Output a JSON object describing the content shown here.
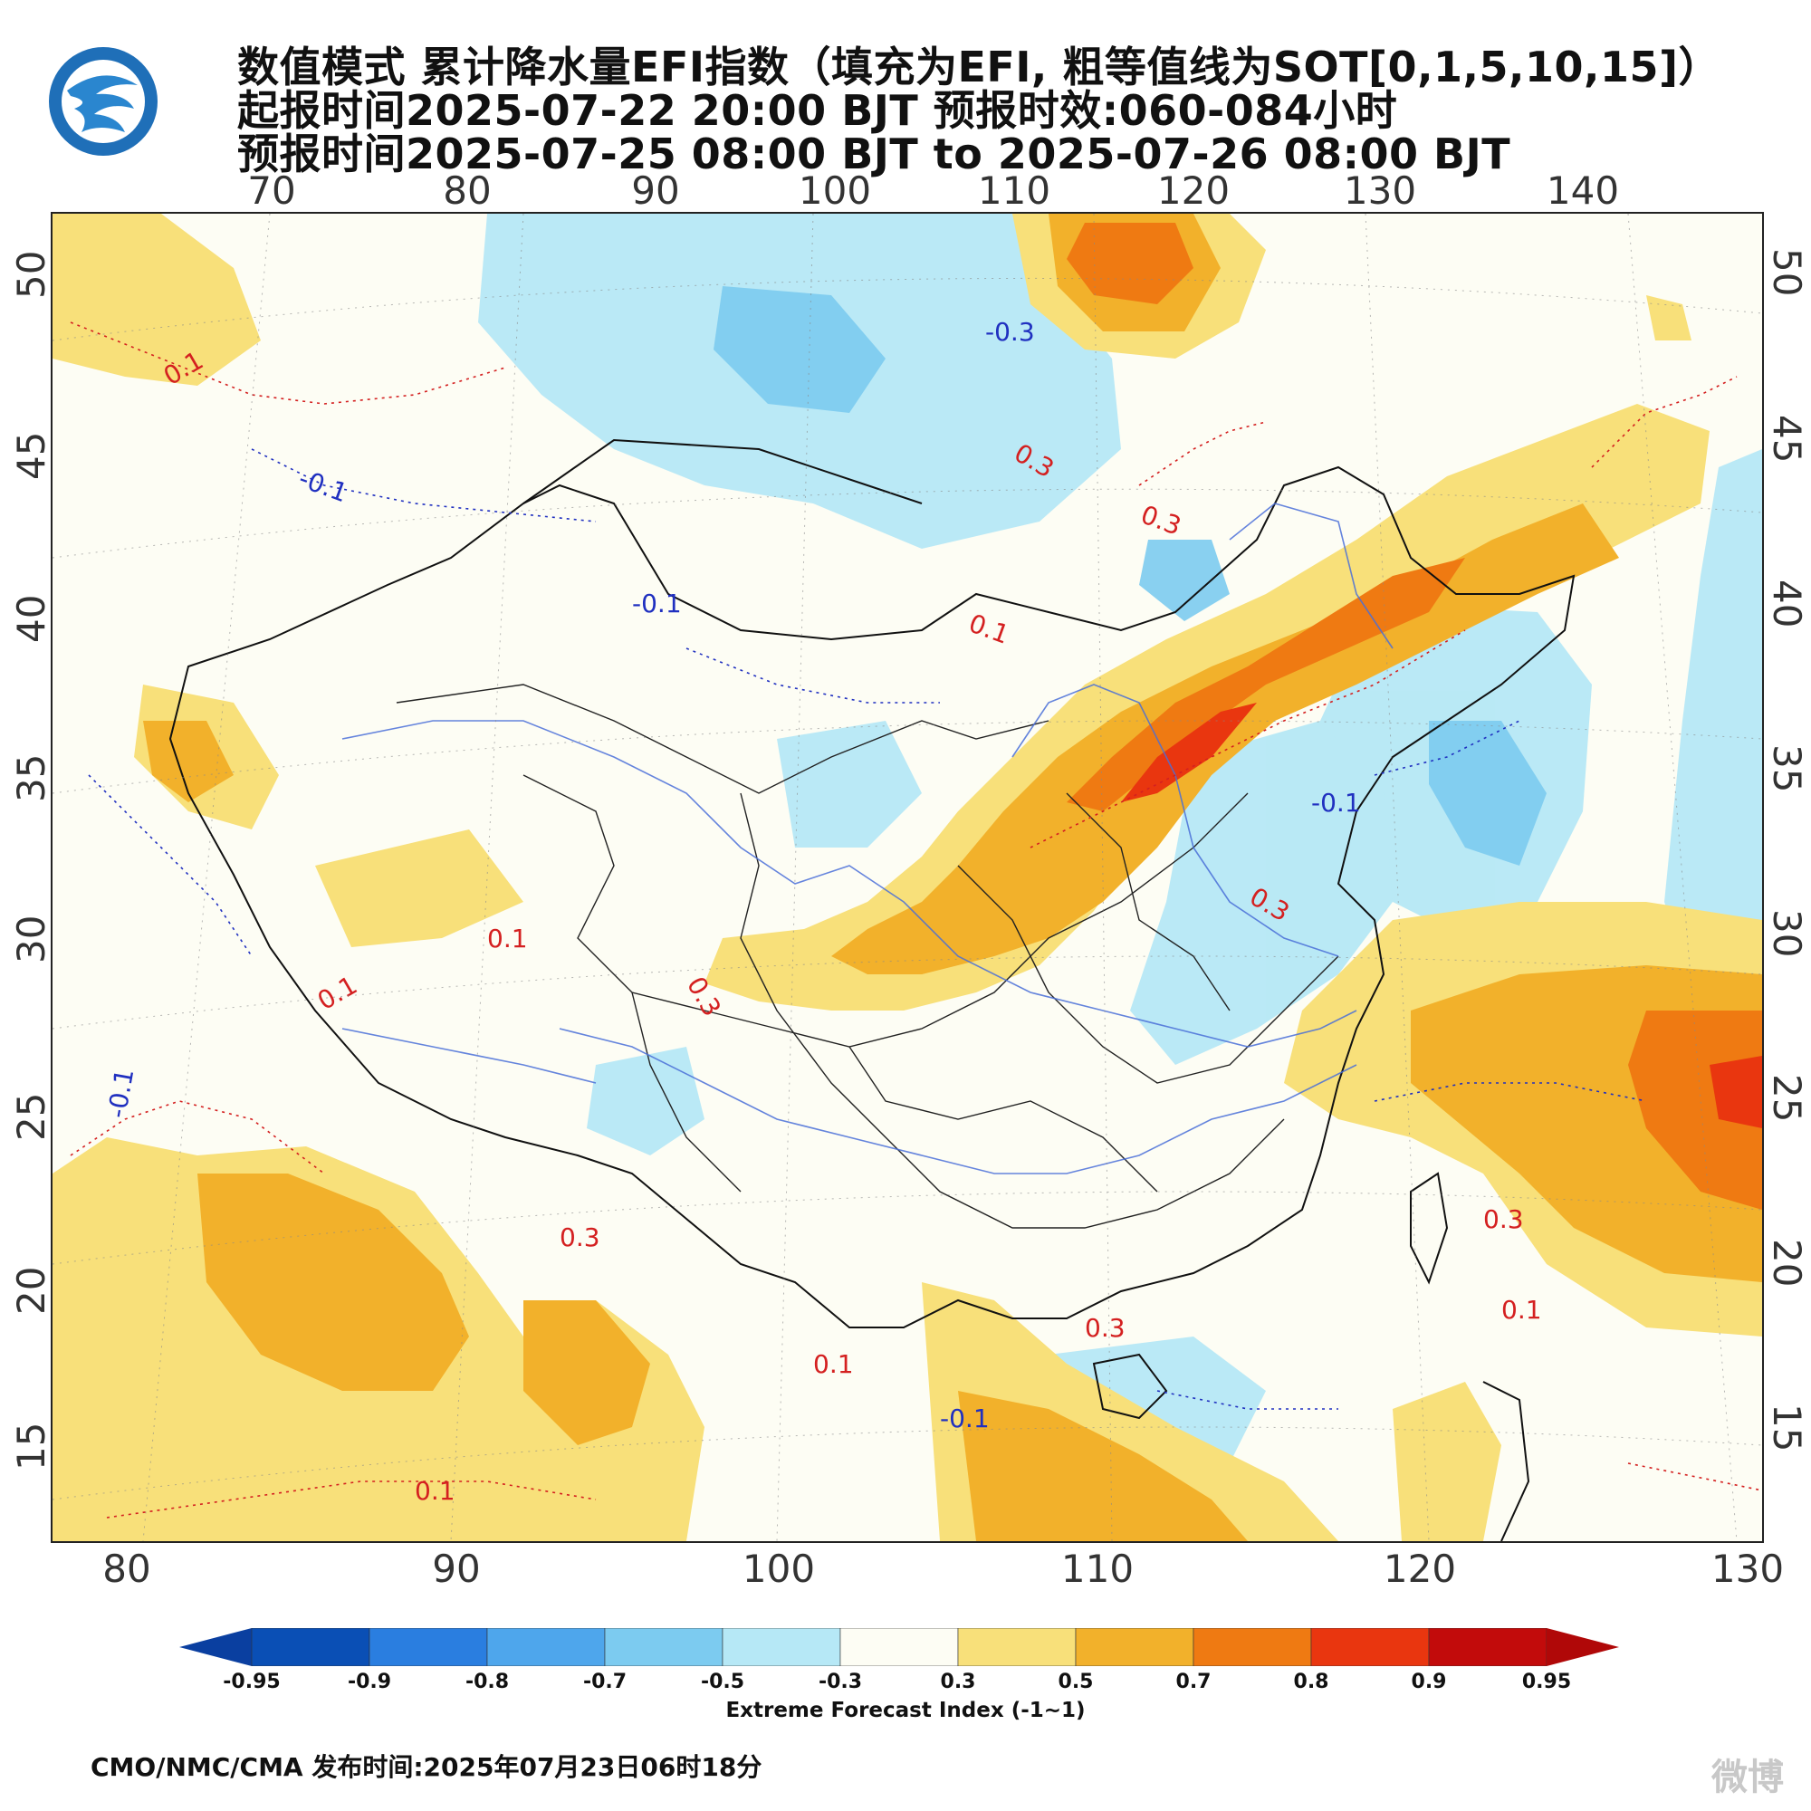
{
  "header": {
    "title_line1": "数值模式 累计降水量EFI指数（填充为EFI, 粗等值线为SOT[0,1,5,10,15]）",
    "title_line2": "起报时间2025-07-22 20:00 BJT 预报时效:060-084小时",
    "title_line3": "预报时间2025-07-25 08:00 BJT to 2025-07-26 08:00 BJT"
  },
  "logo": {
    "icon": "cma-logo-icon"
  },
  "map": {
    "top_lon_ticks": [
      "70",
      "80",
      "90",
      "100",
      "110",
      "120",
      "130",
      "140"
    ],
    "bottom_lon_ticks": [
      "80",
      "90",
      "100",
      "110",
      "120",
      "130"
    ],
    "lat_ticks": [
      "50",
      "45",
      "40",
      "35",
      "30",
      "25",
      "20",
      "15"
    ],
    "contour_labels": [
      "0.1",
      "-0.1",
      "0.3",
      "-0.3",
      "0.1",
      "0.3",
      "-0.1",
      "0.1",
      "0.3",
      "-0.1",
      "0.1",
      "0.3",
      "0.1",
      "0.3",
      "-0.1",
      "0.1",
      "0.3",
      "0.1",
      "-0.1",
      "0.3"
    ]
  },
  "colorbar": {
    "labels": [
      "-0.95",
      "-0.9",
      "-0.8",
      "-0.7",
      "-0.5",
      "-0.3",
      "0.3",
      "0.5",
      "0.7",
      "0.8",
      "0.9",
      "0.95"
    ],
    "colors": [
      "#0a4fb5",
      "#2a7ee0",
      "#4ea6ec",
      "#7ccbf0",
      "#b6e8f6",
      "#fdfdf4",
      "#f8e07a",
      "#f2b12b",
      "#ef7a12",
      "#e9360f",
      "#c20b0b"
    ],
    "low_color": "#0a3fa0",
    "high_color": "#b00808",
    "caption": "Extreme Forecast Index (-1~1)"
  },
  "footer": {
    "text": "CMO/NMC/CMA 发布时间:2025年07月23日06时18分"
  },
  "watermark": {
    "text": "微博"
  }
}
